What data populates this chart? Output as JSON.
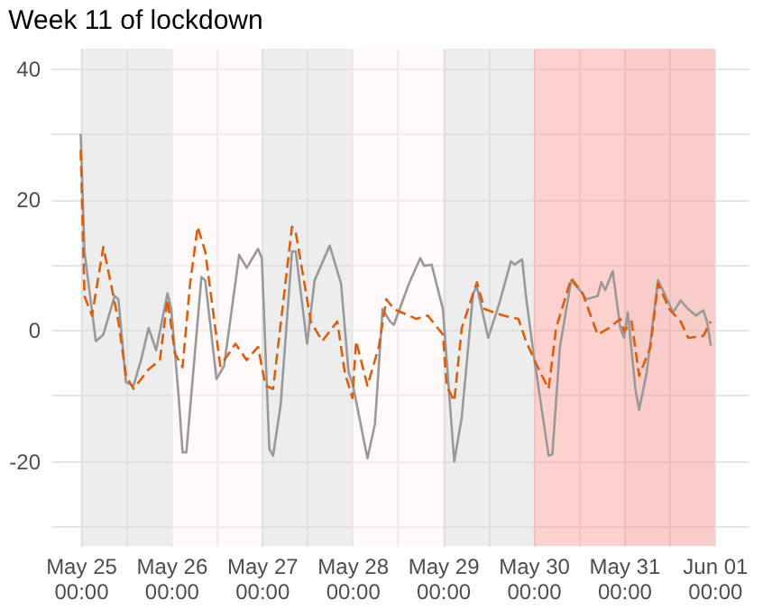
{
  "chart_data": {
    "type": "line",
    "title": "Week 11 of lockdown",
    "xlim": [
      "--05-24T16:00",
      "--06-01T09:00"
    ],
    "xticks": [
      {
        "value": "--05-25T00:00",
        "label": "May 25 00:00"
      },
      {
        "value": "--05-25T12:00",
        "label": null
      },
      {
        "value": "--05-26T00:00",
        "label": "May 26 00:00"
      },
      {
        "value": "--05-26T12:00",
        "label": null
      },
      {
        "value": "--05-27T00:00",
        "label": "May 27 00:00"
      },
      {
        "value": "--05-27T12:00",
        "label": null
      },
      {
        "value": "--05-28T00:00",
        "label": "May 28 00:00"
      },
      {
        "value": "--05-28T12:00",
        "label": null
      },
      {
        "value": "--05-29T00:00",
        "label": "May 29 00:00"
      },
      {
        "value": "--05-29T12:00",
        "label": null
      },
      {
        "value": "--05-30T00:00",
        "label": "May 30 00:00"
      },
      {
        "value": "--05-30T12:00",
        "label": null
      },
      {
        "value": "--05-31T00:00",
        "label": "May 31 00:00"
      },
      {
        "value": "--05-31T12:00",
        "label": null
      },
      {
        "value": "--06-01T00:00",
        "label": "Jun 01 00:00"
      }
    ],
    "ylim": [
      -33,
      43
    ],
    "yticks": [
      {
        "value": -30,
        "label": null
      },
      -20,
      {
        "value": -10,
        "label": null
      },
      0,
      {
        "value": 10,
        "label": null
      },
      20,
      {
        "value": 30,
        "label": null
      },
      40
    ],
    "grid": true,
    "bands": [
      {
        "axis": "x",
        "from": "--05-25T00:00",
        "to": "--05-26T00:00",
        "color": "#dcdcdc"
      },
      {
        "axis": "x",
        "from": "--05-26T00:00",
        "to": "--05-27T00:00",
        "color": "#fff4f4"
      },
      {
        "axis": "x",
        "from": "--05-27T00:00",
        "to": "--05-28T00:00",
        "color": "#dcdcdc"
      },
      {
        "axis": "x",
        "from": "--05-28T00:00",
        "to": "--05-29T00:00",
        "color": "#fff4f4"
      },
      {
        "axis": "x",
        "from": "--05-29T00:00",
        "to": "--05-30T00:00",
        "color": "#dcdcdc"
      },
      {
        "axis": "x",
        "from": "--05-30T00:00",
        "to": "--05-31T00:00",
        "color": "#fba69e"
      },
      {
        "axis": "x",
        "from": "--05-31T00:00",
        "to": "--06-01T00:00",
        "color": "#f29a93"
      }
    ],
    "series": [
      {
        "color": "#999999",
        "line_style": "solid",
        "x": [
          "--05-25T00:00",
          "--05-25T01:00",
          "--05-25T04:00",
          "--05-25T06:00",
          "--05-25T09:00",
          "--05-25T10:00",
          "--05-25T12:00",
          "--05-25T14:00",
          "--05-25T16:00",
          "--05-25T18:00",
          "--05-25T20:00",
          "--05-25T23:00",
          "--05-26T00:00",
          "--05-26T02:00",
          "--05-26T03:00",
          "--05-26T04:00",
          "--05-26T08:00",
          "--05-26T09:00",
          "--05-26T12:00",
          "--05-26T14:00",
          "--05-26T18:00",
          "--05-26T20:00",
          "--05-26T23:00",
          "--05-27T00:00",
          "--05-27T02:00",
          "--05-27T03:00",
          "--05-27T05:00",
          "--05-27T08:00",
          "--05-27T09:00",
          "--05-27T12:00",
          "--05-27T14:00",
          "--05-27T18:00",
          "--05-27T21:00",
          "--05-27T23:00",
          "--05-28T00:00",
          "--05-28T04:00",
          "--05-28T06:00",
          "--05-28T08:00",
          "--05-28T10:00",
          "--05-28T11:00",
          "--05-28T15:00",
          "--05-28T18:00",
          "--05-28T19:00",
          "--05-28T21:00",
          "--05-29T00:00",
          "--05-29T01:00",
          "--05-29T03:00",
          "--05-29T05:00",
          "--05-29T08:00",
          "--05-29T09:00",
          "--05-29T12:00",
          "--05-29T15:00",
          "--05-29T18:00",
          "--05-29T19:00",
          "--05-29T21:00",
          "--05-29T22:00",
          "--05-30T00:00",
          "--05-30T04:00",
          "--05-30T05:00",
          "--05-30T07:00",
          "--05-30T10:00",
          "--05-30T13:00",
          "--05-30T14:00",
          "--05-30T17:00",
          "--05-30T18:00",
          "--05-30T19:00",
          "--05-30T21:00",
          "--05-30T23:00",
          "--05-31T00:00",
          "--05-31T01:00",
          "--05-31T03:00",
          "--05-31T04:00",
          "--05-31T06:00",
          "--05-31T09:00",
          "--05-31T11:00",
          "--05-31T13:00",
          "--05-31T15:00",
          "--05-31T17:00",
          "--05-31T19:00",
          "--05-31T21:00",
          "--05-31T22:00",
          "--05-31T23:00"
        ],
        "values": [
          30,
          12,
          -1.7,
          -0.7,
          5.2,
          4.7,
          -8,
          -8.5,
          -4.6,
          0.3,
          -3.1,
          5.6,
          3.2,
          -10.4,
          -18.7,
          -18.7,
          8.1,
          7.6,
          -7.5,
          -5.5,
          11.5,
          9.5,
          12.4,
          11,
          -18.2,
          -19.2,
          -11.4,
          12,
          12,
          -2.1,
          7.6,
          12.9,
          7.1,
          -6.5,
          -8,
          -19.6,
          -14.3,
          3.2,
          1.3,
          0.8,
          7.1,
          11,
          9.8,
          10,
          3.2,
          -4.6,
          -20.1,
          -13.3,
          5.6,
          6.6,
          -1.2,
          4.2,
          10.5,
          10,
          10.8,
          5.2,
          -3.6,
          -19.2,
          -19,
          -2.6,
          7.6,
          5.6,
          4.7,
          5.2,
          7.3,
          6.1,
          9,
          0.3,
          -1.2,
          2.7,
          -9,
          -12.2,
          -6.5,
          7.6,
          5.2,
          2.7,
          4.5,
          3.2,
          2.2,
          3,
          1.3,
          -2.4
        ]
      },
      {
        "color": "#d95f0e",
        "line_style": "dashed",
        "x": [
          "--05-25T00:00",
          "--05-25T01:00",
          "--05-25T03:00",
          "--05-25T06:00",
          "--05-25T08:00",
          "--05-25T10:00",
          "--05-25T12:00",
          "--05-25T14:00",
          "--05-25T18:00",
          "--05-25T21:00",
          "--05-25T23:00",
          "--05-26T01:00",
          "--05-26T03:00",
          "--05-26T05:00",
          "--05-26T07:00",
          "--05-26T09:00",
          "--05-26T13:00",
          "--05-26T17:00",
          "--05-26T20:00",
          "--05-26T23:00",
          "--05-27T01:00",
          "--05-27T03:00",
          "--05-27T08:00",
          "--05-27T09:00",
          "--05-27T13:00",
          "--05-27T16:00",
          "--05-27T20:00",
          "--05-27T22:00",
          "--05-28T00:00",
          "--05-28T01:00",
          "--05-28T04:00",
          "--05-28T07:00",
          "--05-28T09:00",
          "--05-28T11:00",
          "--05-28T13:00",
          "--05-28T17:00",
          "--05-28T20:00",
          "--05-29T00:00",
          "--05-29T01:00",
          "--05-29T03:00",
          "--05-29T05:00",
          "--05-29T09:00",
          "--05-29T11:00",
          "--05-29T16:00",
          "--05-29T20:00",
          "--05-29T22:00",
          "--05-30T01:00",
          "--05-30T04:00",
          "--05-30T06:00",
          "--05-30T10:00",
          "--05-30T13:00",
          "--05-30T17:00",
          "--05-30T20:00",
          "--05-30T23:00",
          "--05-31T00:00",
          "--05-31T02:00",
          "--05-31T04:00",
          "--05-31T07:00",
          "--05-31T09:00",
          "--05-31T12:00",
          "--05-31T15:00",
          "--05-31T17:00",
          "--05-31T21:00",
          "--05-31T23:00"
        ],
        "values": [
          27.5,
          5.2,
          2.2,
          12.7,
          7.1,
          1.3,
          -7,
          -9,
          -6,
          -4.6,
          4.7,
          -3.6,
          -5.7,
          7.1,
          15.8,
          12,
          -5.5,
          -2.1,
          -4.6,
          -2.6,
          -8.5,
          -9,
          15.8,
          14.9,
          1.3,
          -1.7,
          1.3,
          -6.5,
          -10.4,
          -1.7,
          -8.5,
          -2.6,
          4.7,
          3.2,
          2.7,
          1.7,
          2.2,
          -0.7,
          -8.5,
          -10.9,
          0.3,
          7.3,
          3.2,
          2.2,
          1.7,
          -1.7,
          -5.5,
          -9,
          0.3,
          7.9,
          5.6,
          -0.7,
          0.3,
          1.7,
          -0.2,
          1.3,
          -7,
          -2.6,
          7.1,
          3.2,
          1.3,
          -1.2,
          -0.9,
          1.3
        ]
      }
    ]
  }
}
